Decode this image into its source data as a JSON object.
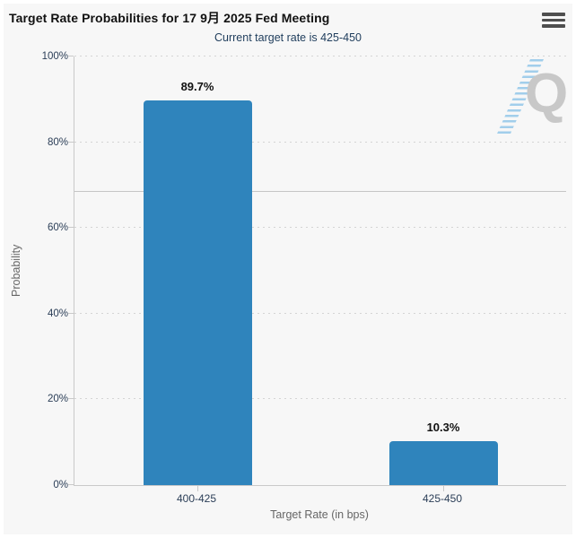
{
  "header": {
    "title": "Target Rate Probabilities for 17 9月 2025 Fed Meeting",
    "menu_icon": "hamburger-menu-icon"
  },
  "chart_data": {
    "type": "bar",
    "title": "Target Rate Probabilities for 17 9月 2025 Fed Meeting",
    "subtitle": "Current target rate is 425-450",
    "categories": [
      "400-425",
      "425-450"
    ],
    "values": [
      89.7,
      10.3
    ],
    "data_labels": [
      "89.7%",
      "10.3%"
    ],
    "xlabel": "Target Rate (in bps)",
    "ylabel": "Probability",
    "ylim": [
      0,
      100
    ],
    "ytick_values": [
      0,
      20,
      40,
      60,
      80,
      100
    ],
    "ytick_labels": [
      "0%",
      "20%",
      "40%",
      "60%",
      "80%",
      "100%"
    ],
    "grid": "dotted-horizontal",
    "legend": "none",
    "reference_line_value": 68.4,
    "watermark_letter": "Q",
    "colors": {
      "bar": "#2f84bc",
      "background": "#f7f7f7",
      "subtitle_text": "#1f3d5c",
      "tick_text": "#2b3e57",
      "axis_title_text": "#666666",
      "axis_line": "#c9c9c9",
      "reference_line": "#c6c6c6"
    }
  }
}
